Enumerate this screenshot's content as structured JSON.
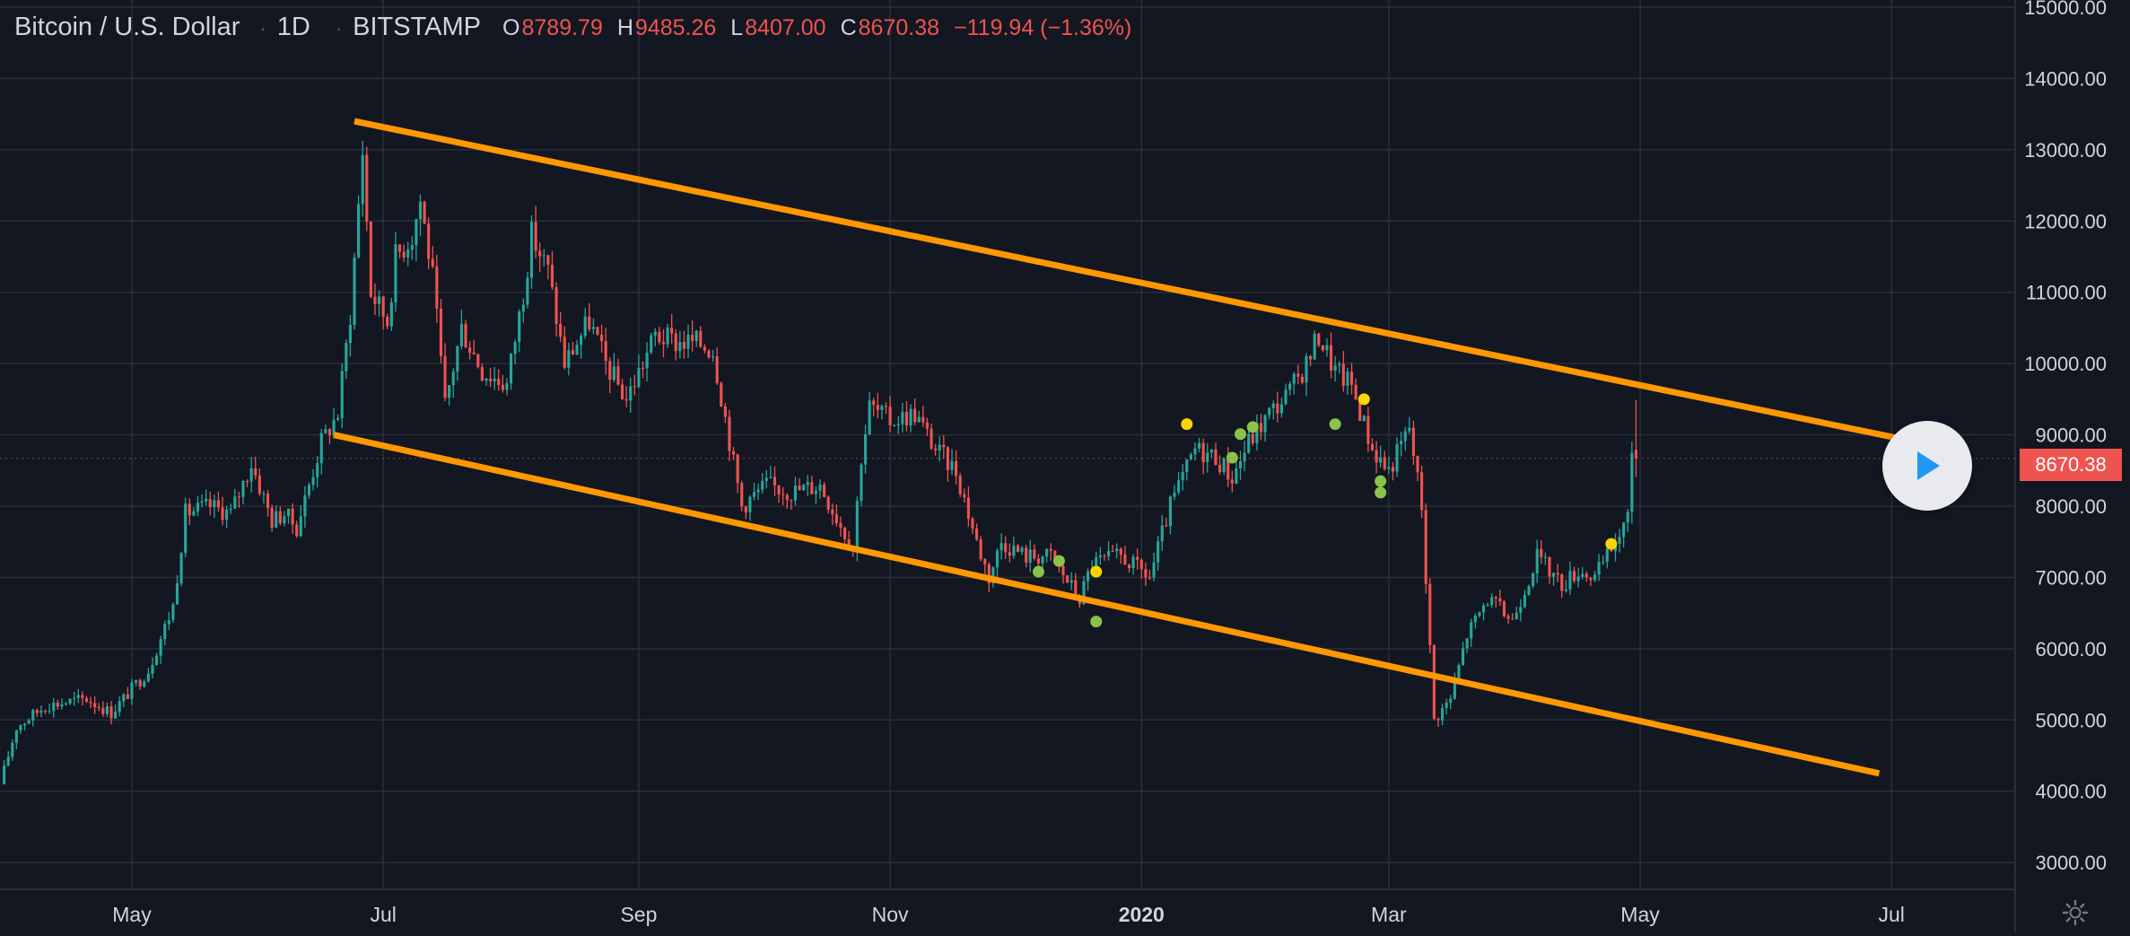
{
  "legend": {
    "symbol": "Bitcoin / U.S. Dollar",
    "sep1": "·",
    "interval": "1D",
    "sep2": "·",
    "exchange": "BITSTAMP",
    "o_label": "O",
    "o_value": "8789.79",
    "h_label": "H",
    "h_value": "9485.26",
    "l_label": "L",
    "l_value": "8407.00",
    "c_label": "C",
    "c_value": "8670.38",
    "change": "−119.94 (−1.36%)"
  },
  "last_price_label": "8670.38",
  "icons": {
    "play": "play-icon",
    "settings": "gear-icon"
  },
  "colors": {
    "background": "#131722",
    "up": "#26a69a",
    "down": "#ef5350",
    "trendline": "#ff9800",
    "grid": "#2a2e39",
    "text": "#d1d4dc",
    "marker_yellow": "#ffd400",
    "marker_green": "#8bc34a"
  },
  "chart_data": {
    "type": "candlestick",
    "title": "Bitcoin / U.S. Dollar · 1D · BITSTAMP",
    "xlabel": "",
    "ylabel": "",
    "x_range": [
      "2019-03-30",
      "2020-07-31"
    ],
    "ylim": [
      2800,
      15000
    ],
    "grid": true,
    "price_axis_position": "right",
    "y_ticks": [
      "15000.00",
      "14000.00",
      "13000.00",
      "12000.00",
      "11000.00",
      "10000.00",
      "9000.00",
      "8000.00",
      "7000.00",
      "6000.00",
      "5000.00",
      "4000.00",
      "3000.00"
    ],
    "x_ticks": [
      {
        "date": "2019-05-01",
        "label": "May",
        "bold": false
      },
      {
        "date": "2019-07-01",
        "label": "Jul",
        "bold": false
      },
      {
        "date": "2019-09-01",
        "label": "Sep",
        "bold": false
      },
      {
        "date": "2019-11-01",
        "label": "Nov",
        "bold": false
      },
      {
        "date": "2020-01-01",
        "label": "2020",
        "bold": true
      },
      {
        "date": "2020-03-01",
        "label": "Mar",
        "bold": false
      },
      {
        "date": "2020-05-01",
        "label": "May",
        "bold": false
      },
      {
        "date": "2020-07-01",
        "label": "Jul",
        "bold": false
      }
    ],
    "close_path": [
      [
        "2019-03-30",
        4100
      ],
      [
        "2019-04-03",
        4900
      ],
      [
        "2019-04-10",
        5200
      ],
      [
        "2019-04-20",
        5300
      ],
      [
        "2019-04-26",
        5100
      ],
      [
        "2019-05-05",
        5700
      ],
      [
        "2019-05-11",
        6600
      ],
      [
        "2019-05-14",
        7900
      ],
      [
        "2019-05-20",
        8000
      ],
      [
        "2019-05-25",
        7900
      ],
      [
        "2019-05-30",
        8600
      ],
      [
        "2019-06-04",
        7800
      ],
      [
        "2019-06-07",
        7900
      ],
      [
        "2019-06-10",
        7700
      ],
      [
        "2019-06-16",
        8900
      ],
      [
        "2019-06-20",
        9300
      ],
      [
        "2019-06-23",
        10700
      ],
      [
        "2019-06-26",
        13000
      ],
      [
        "2019-06-28",
        11000
      ],
      [
        "2019-07-02",
        10600
      ],
      [
        "2019-07-04",
        11500
      ],
      [
        "2019-07-08",
        11800
      ],
      [
        "2019-07-10",
        12300
      ],
      [
        "2019-07-13",
        11200
      ],
      [
        "2019-07-16",
        9400
      ],
      [
        "2019-07-20",
        10500
      ],
      [
        "2019-07-25",
        9900
      ],
      [
        "2019-07-31",
        9700
      ],
      [
        "2019-08-04",
        11000
      ],
      [
        "2019-08-06",
        11800
      ],
      [
        "2019-08-10",
        11300
      ],
      [
        "2019-08-14",
        10000
      ],
      [
        "2019-08-20",
        10600
      ],
      [
        "2019-08-24",
        10000
      ],
      [
        "2019-08-29",
        9500
      ],
      [
        "2019-09-05",
        10400
      ],
      [
        "2019-09-10",
        10300
      ],
      [
        "2019-09-15",
        10300
      ],
      [
        "2019-09-19",
        10200
      ],
      [
        "2019-09-24",
        8600
      ],
      [
        "2019-09-26",
        8000
      ],
      [
        "2019-10-02",
        8300
      ],
      [
        "2019-10-08",
        8200
      ],
      [
        "2019-10-15",
        8300
      ],
      [
        "2019-10-23",
        7400
      ],
      [
        "2019-10-25",
        8700
      ],
      [
        "2019-10-27",
        9400
      ],
      [
        "2019-11-01",
        9200
      ],
      [
        "2019-11-07",
        9300
      ],
      [
        "2019-11-12",
        8800
      ],
      [
        "2019-11-17",
        8500
      ],
      [
        "2019-11-22",
        7500
      ],
      [
        "2019-11-25",
        7000
      ],
      [
        "2019-11-28",
        7500
      ],
      [
        "2019-12-04",
        7300
      ],
      [
        "2019-12-10",
        7300
      ],
      [
        "2019-12-17",
        6700
      ],
      [
        "2019-12-20",
        7200
      ],
      [
        "2019-12-27",
        7300
      ],
      [
        "2020-01-03",
        7000
      ],
      [
        "2020-01-08",
        8000
      ],
      [
        "2020-01-14",
        8800
      ],
      [
        "2020-01-19",
        8700
      ],
      [
        "2020-01-23",
        8400
      ],
      [
        "2020-01-27",
        8900
      ],
      [
        "2020-02-01",
        9300
      ],
      [
        "2020-02-06",
        9600
      ],
      [
        "2020-02-10",
        10000
      ],
      [
        "2020-02-13",
        10400
      ],
      [
        "2020-02-17",
        9900
      ],
      [
        "2020-02-21",
        9700
      ],
      [
        "2020-02-26",
        8800
      ],
      [
        "2020-03-01",
        8500
      ],
      [
        "2020-03-06",
        9100
      ],
      [
        "2020-03-09",
        8000
      ],
      [
        "2020-03-12",
        5000
      ],
      [
        "2020-03-16",
        5300
      ],
      [
        "2020-03-20",
        6200
      ],
      [
        "2020-03-25",
        6700
      ],
      [
        "2020-03-31",
        6400
      ],
      [
        "2020-04-06",
        7300
      ],
      [
        "2020-04-12",
        6900
      ],
      [
        "2020-04-16",
        7100
      ],
      [
        "2020-04-20",
        7000
      ],
      [
        "2020-04-25",
        7500
      ],
      [
        "2020-04-28",
        7800
      ],
      [
        "2020-04-29",
        8800
      ],
      [
        "2020-04-30",
        8670
      ]
    ],
    "markers": [
      {
        "date": "2020-01-12",
        "y": 9150,
        "color": "yellow"
      },
      {
        "date": "2019-12-21",
        "y": 7080,
        "color": "yellow"
      },
      {
        "date": "2020-02-24",
        "y": 9500,
        "color": "yellow"
      },
      {
        "date": "2020-04-24",
        "y": 7470,
        "color": "yellow"
      },
      {
        "date": "2019-12-07",
        "y": 7080,
        "color": "green"
      },
      {
        "date": "2019-12-12",
        "y": 7230,
        "color": "green"
      },
      {
        "date": "2019-12-21",
        "y": 6380,
        "color": "green"
      },
      {
        "date": "2020-01-23",
        "y": 8680,
        "color": "green"
      },
      {
        "date": "2020-01-25",
        "y": 9010,
        "color": "green"
      },
      {
        "date": "2020-01-28",
        "y": 9110,
        "color": "green"
      },
      {
        "date": "2020-02-17",
        "y": 9150,
        "color": "green"
      },
      {
        "date": "2020-02-28",
        "y": 8350,
        "color": "green"
      },
      {
        "date": "2020-02-28",
        "y": 8190,
        "color": "green"
      }
    ],
    "trendlines": [
      {
        "name": "",
        "start": {
          "date": "2019-06-24",
          "price": 13400
        },
        "end": {
          "date": "2020-07-02",
          "price": 8960
        }
      },
      {
        "name": "",
        "start": {
          "date": "2019-06-19",
          "price": 9000
        },
        "end": {
          "date": "2020-06-28",
          "price": 4250
        }
      }
    ],
    "last_price": 8670.38
  }
}
